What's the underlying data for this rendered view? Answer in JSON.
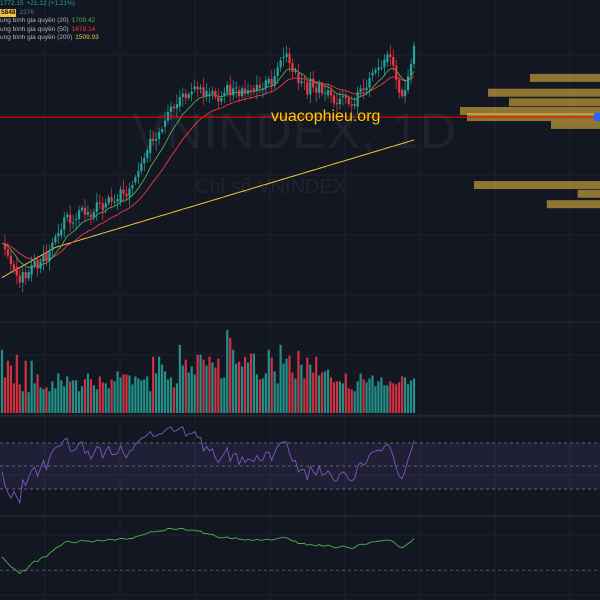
{
  "legend": {
    "price_line": {
      "values": "1772.15",
      "change": "+21.12 (+1.21%)"
    },
    "volume_line": {
      "value": "5848",
      "ref": "2276"
    },
    "ma20": {
      "label": "ung bình gia quyền (20)",
      "value": "1709.42"
    },
    "ma50": {
      "label": "ung bình gia quyền (50)",
      "value": "1678.14"
    },
    "ma200": {
      "label": "ung bình gia quyền (200)",
      "value": "1509.93"
    }
  },
  "watermark": {
    "ticker": "VNINDEX, 1D",
    "name": "Chỉ số VNINDEX",
    "site": "vuacophieu.org"
  },
  "colors": {
    "background": "#131722",
    "up": "#26a69a",
    "down": "#f23645",
    "ma20": "#4caf50",
    "ma50": "#f23645",
    "ma200": "#f5c242",
    "rsi": "#7e57c2",
    "oscillator": "#4caf50",
    "horizontal_line": "#ff0000",
    "volume_profile": "#f5c242"
  },
  "chart_data": {
    "type": "candlestick",
    "symbol": "VNINDEX",
    "timeframe": "1D",
    "moving_averages": [
      {
        "name": "MA 20",
        "last": 1709.42
      },
      {
        "name": "MA 50",
        "last": 1678.14
      },
      {
        "name": "MA 200",
        "last": 1509.93
      }
    ],
    "last_close": 1772.15,
    "last_change": 21.12,
    "last_change_pct": 1.21,
    "price_range": [
      1480,
      1790
    ],
    "horizontal_level": 1690,
    "candle_count": 140,
    "close_series": [
      1545,
      1538,
      1531,
      1521,
      1515,
      1508,
      1500,
      1512,
      1505,
      1512,
      1520,
      1525,
      1516,
      1524,
      1532,
      1525,
      1537,
      1546,
      1553,
      1557,
      1561,
      1575,
      1578,
      1568,
      1569,
      1573,
      1583,
      1586,
      1578,
      1581,
      1575,
      1581,
      1592,
      1591,
      1583,
      1591,
      1598,
      1593,
      1593,
      1596,
      1607,
      1602,
      1599,
      1608,
      1612,
      1621,
      1628,
      1637,
      1643,
      1652,
      1665,
      1663,
      1665,
      1673,
      1676,
      1686,
      1696,
      1702,
      1700,
      1705,
      1713,
      1717,
      1712,
      1716,
      1719,
      1725,
      1722,
      1724,
      1714,
      1720,
      1717,
      1720,
      1713,
      1708,
      1712,
      1718,
      1727,
      1715,
      1723,
      1724,
      1714,
      1723,
      1717,
      1721,
      1720,
      1720,
      1727,
      1723,
      1723,
      1732,
      1734,
      1726,
      1737,
      1747,
      1755,
      1759,
      1763,
      1752,
      1742,
      1744,
      1729,
      1731,
      1730,
      1716,
      1731,
      1724,
      1718,
      1728,
      1717,
      1718,
      1721,
      1715,
      1706,
      1705,
      1711,
      1714,
      1712,
      1705,
      1703,
      1705,
      1719,
      1723,
      1721,
      1724,
      1735,
      1741,
      1744,
      1747,
      1747,
      1756,
      1762,
      1759,
      1749,
      1733,
      1718,
      1714,
      1721,
      1737,
      1751,
      1772
    ],
    "volume_series": [
      64,
      36,
      53,
      48,
      30,
      59,
      29,
      22,
      53,
      21,
      53,
      30,
      39,
      26,
      24,
      26,
      22,
      32,
      25,
      40,
      33,
      27,
      37,
      32,
      33,
      33,
      22,
      27,
      34,
      40,
      34,
      28,
      24,
      37,
      31,
      30,
      25,
      34,
      32,
      42,
      36,
      39,
      39,
      38,
      29,
      37,
      35,
      33,
      34,
      37,
      22,
      57,
      40,
      57,
      49,
      42,
      34,
      36,
      26,
      30,
      69,
      48,
      54,
      41,
      47,
      39,
      59,
      59,
      54,
      48,
      57,
      51,
      46,
      55,
      35,
      36,
      84,
      76,
      64,
      50,
      52,
      47,
      57,
      51,
      60,
      60,
      39,
      34,
      35,
      40,
      64,
      56,
      42,
      30,
      69,
      50,
      55,
      58,
      41,
      35,
      63,
      49,
      35,
      56,
      49,
      41,
      57,
      38,
      41,
      42,
      44,
      36,
      31,
      32,
      32,
      30,
      40,
      25,
      24,
      22,
      32,
      40,
      34,
      31,
      35,
      38,
      27,
      32,
      36,
      28,
      28,
      32,
      30,
      29,
      31,
      37,
      36,
      29,
      33,
      35
    ],
    "rsi_series": [
      45,
      33,
      27,
      22,
      28,
      23,
      18,
      38,
      33,
      40,
      46,
      49,
      41,
      48,
      55,
      47,
      57,
      63,
      66,
      67,
      68,
      73,
      74,
      63,
      63,
      65,
      70,
      71,
      61,
      63,
      56,
      61,
      67,
      66,
      57,
      63,
      67,
      60,
      60,
      61,
      68,
      61,
      57,
      63,
      64,
      69,
      71,
      74,
      75,
      77,
      80,
      76,
      76,
      78,
      78,
      81,
      83,
      84,
      80,
      81,
      83,
      84,
      76,
      78,
      78,
      80,
      75,
      75,
      63,
      67,
      63,
      65,
      57,
      53,
      57,
      61,
      66,
      54,
      60,
      61,
      51,
      58,
      53,
      56,
      55,
      54,
      59,
      55,
      55,
      62,
      62,
      55,
      62,
      67,
      70,
      71,
      71,
      61,
      54,
      55,
      45,
      47,
      47,
      38,
      50,
      45,
      42,
      50,
      42,
      43,
      46,
      42,
      37,
      37,
      43,
      45,
      43,
      38,
      37,
      39,
      50,
      53,
      51,
      53,
      60,
      62,
      63,
      64,
      63,
      67,
      69,
      66,
      58,
      48,
      41,
      39,
      46,
      56,
      63,
      72
    ],
    "osc_series": [
      -12,
      -16,
      -20,
      -24,
      -26,
      -29,
      -32,
      -28,
      -29,
      -24,
      -20,
      -17,
      -18,
      -14,
      -12,
      -12,
      -8,
      -5,
      -2,
      0,
      2,
      5,
      7,
      6,
      5,
      5,
      7,
      8,
      7,
      7,
      6,
      6,
      8,
      8,
      7,
      8,
      9,
      9,
      8,
      9,
      10,
      10,
      9,
      10,
      10,
      12,
      13,
      14,
      15,
      16,
      18,
      18,
      18,
      19,
      19,
      20,
      22,
      22,
      21,
      21,
      22,
      22,
      20,
      20,
      20,
      20,
      19,
      19,
      16,
      16,
      15,
      15,
      13,
      11,
      11,
      11,
      12,
      10,
      10,
      11,
      9,
      9,
      8,
      9,
      8,
      8,
      9,
      8,
      8,
      9,
      9,
      8,
      9,
      10,
      11,
      11,
      11,
      9,
      7,
      7,
      4,
      4,
      4,
      2,
      3,
      2,
      1,
      3,
      1,
      1,
      2,
      1,
      -1,
      -1,
      0,
      1,
      0,
      -1,
      -2,
      -1,
      2,
      3,
      3,
      3,
      5,
      6,
      6,
      7,
      7,
      8,
      8,
      8,
      6,
      3,
      0,
      -1,
      1,
      4,
      6,
      10
    ],
    "volume_profile": [
      {
        "price": 1735,
        "strength": 0.5
      },
      {
        "price": 1718,
        "strength": 0.8
      },
      {
        "price": 1707,
        "strength": 0.65
      },
      {
        "price": 1697,
        "strength": 1.0
      },
      {
        "price": 1690,
        "strength": 0.95
      },
      {
        "price": 1681,
        "strength": 0.35
      },
      {
        "price": 1612,
        "strength": 0.9
      },
      {
        "price": 1602,
        "strength": 0.16
      },
      {
        "price": 1590,
        "strength": 0.38
      }
    ]
  }
}
